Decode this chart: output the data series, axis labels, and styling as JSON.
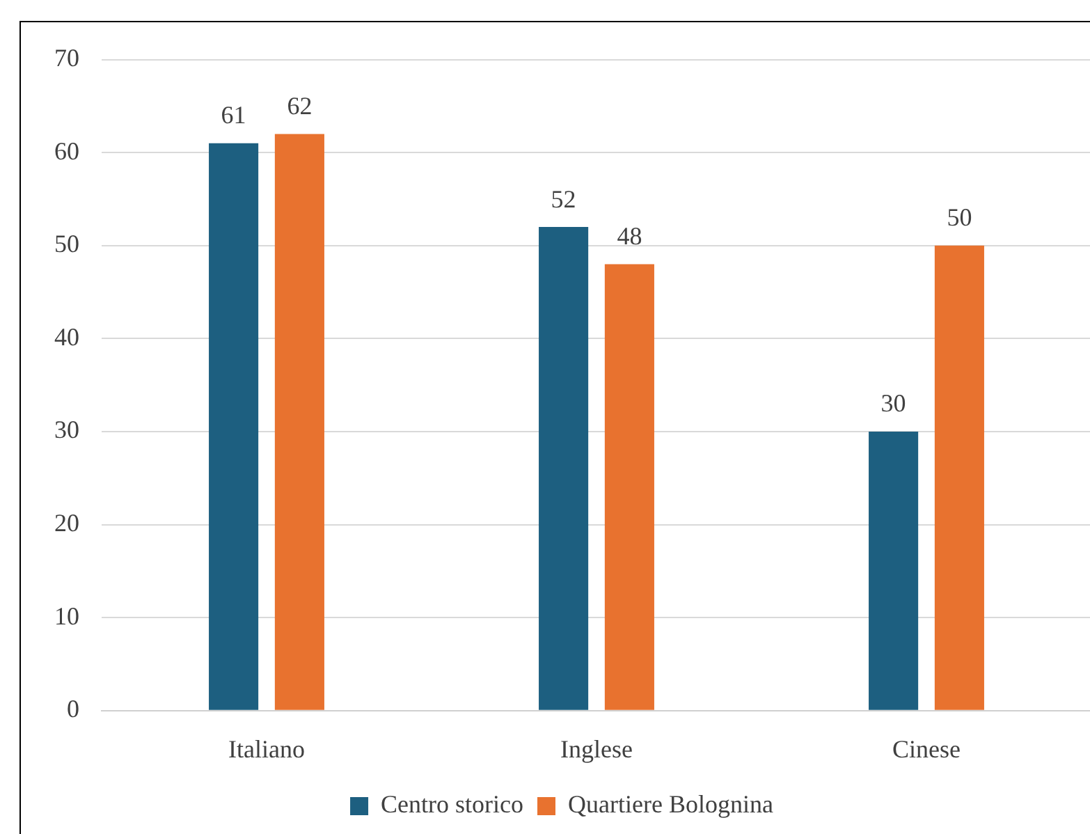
{
  "chart_data": {
    "type": "bar",
    "categories": [
      "Italiano",
      "Inglese",
      "Cinese"
    ],
    "series": [
      {
        "name": "Centro storico",
        "color": "#1d5f80",
        "values": [
          61,
          52,
          30
        ]
      },
      {
        "name": "Quartiere Bolognina",
        "color": "#e8722f",
        "values": [
          62,
          48,
          50
        ]
      }
    ],
    "ylim": [
      0,
      70
    ],
    "yticks": [
      0,
      10,
      20,
      30,
      40,
      50,
      60,
      70
    ],
    "grid": "y",
    "legend": "bottom",
    "data_labels": true
  }
}
